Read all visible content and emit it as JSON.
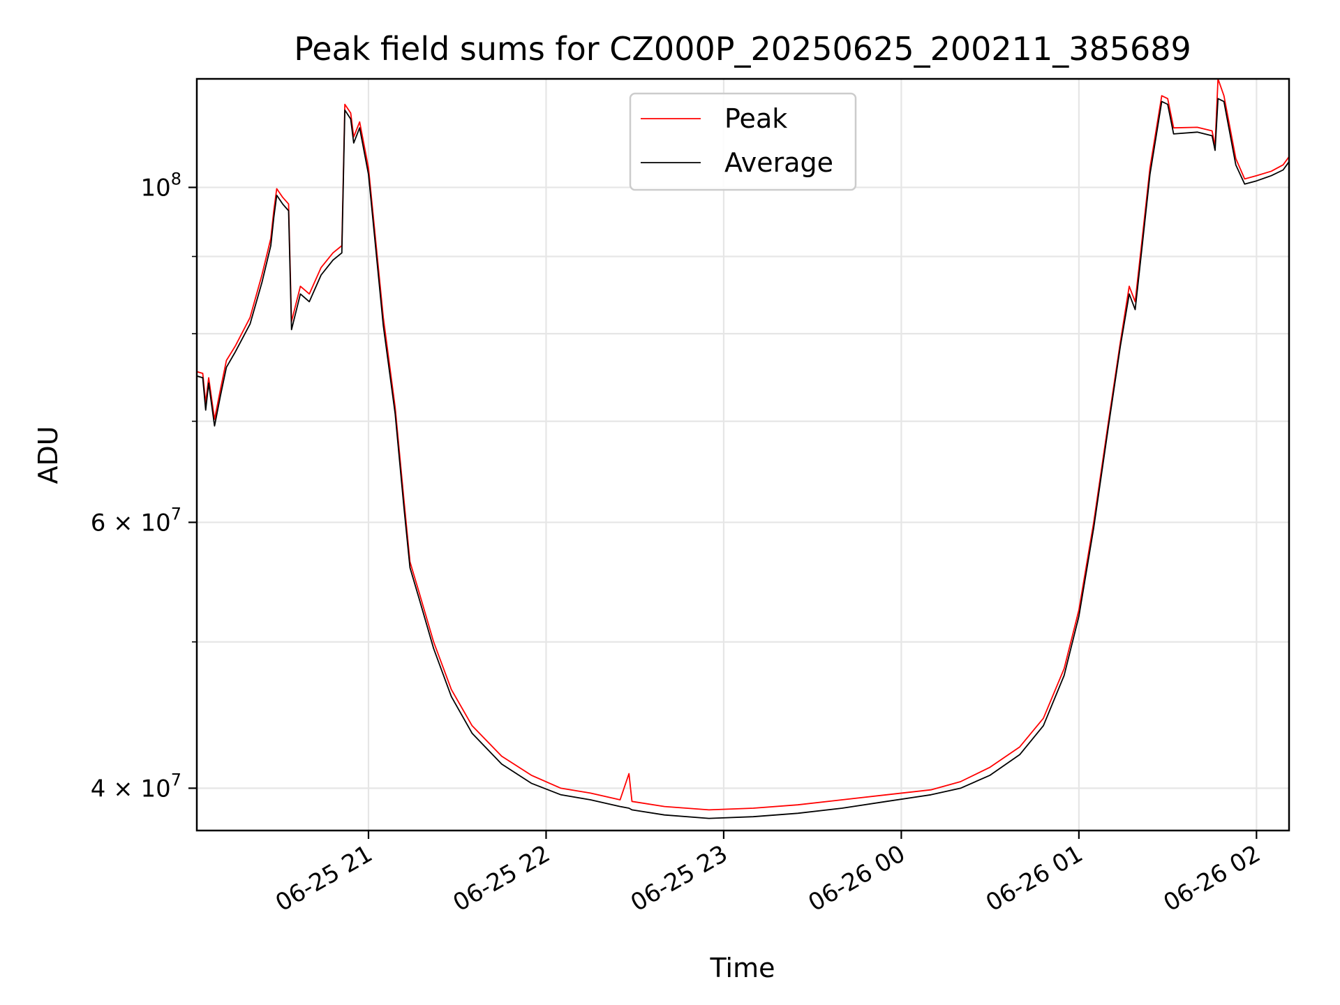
{
  "chart_data": {
    "type": "line",
    "title": "Peak field sums for CZ000P_20250625_200211_385689",
    "xlabel": "Time",
    "ylabel": "ADU",
    "y_scale": "log",
    "grid": true,
    "legend_position": "upper center",
    "xlim": [
      "2025-06-25 20:02",
      "2025-06-26 02:11"
    ],
    "ylim": [
      37500000,
      118000000
    ],
    "x_ticks": [
      {
        "t": "2025-06-25 21:00",
        "label": "06-25 21"
      },
      {
        "t": "2025-06-25 22:00",
        "label": "06-25 22"
      },
      {
        "t": "2025-06-25 23:00",
        "label": "06-25 23"
      },
      {
        "t": "2025-06-26 00:00",
        "label": "06-26 00"
      },
      {
        "t": "2025-06-26 01:00",
        "label": "06-26 01"
      },
      {
        "t": "2025-06-26 02:00",
        "label": "06-26 02"
      }
    ],
    "y_major_ticks": [
      {
        "value": 40000000,
        "mantissa": "4",
        "exponent": "7"
      },
      {
        "value": 60000000,
        "mantissa": "6",
        "exponent": "7"
      },
      {
        "value": 100000000,
        "mantissa": "",
        "exponent": "8"
      }
    ],
    "y_minor_ticks": [
      50000000,
      70000000,
      80000000,
      90000000
    ],
    "colors": {
      "peak": "#ff0000",
      "average": "#000000"
    },
    "series": [
      {
        "name": "Peak",
        "color": "#ff0000",
        "points": [
          [
            "2025-06-25 20:02",
            75500000
          ],
          [
            "2025-06-25 20:04",
            75300000
          ],
          [
            "2025-06-25 20:05",
            72000000
          ],
          [
            "2025-06-25 20:06",
            74800000
          ],
          [
            "2025-06-25 20:08",
            70200000
          ],
          [
            "2025-06-25 20:10",
            73500000
          ],
          [
            "2025-06-25 20:12",
            76800000
          ],
          [
            "2025-06-25 20:15",
            78500000
          ],
          [
            "2025-06-25 20:20",
            82000000
          ],
          [
            "2025-06-25 20:24",
            87500000
          ],
          [
            "2025-06-25 20:27",
            92500000
          ],
          [
            "2025-06-25 20:28",
            96500000
          ],
          [
            "2025-06-25 20:29",
            99800000
          ],
          [
            "2025-06-25 20:31",
            98500000
          ],
          [
            "2025-06-25 20:33",
            97500000
          ],
          [
            "2025-06-25 20:34",
            81500000
          ],
          [
            "2025-06-25 20:37",
            86000000
          ],
          [
            "2025-06-25 20:40",
            85000000
          ],
          [
            "2025-06-25 20:44",
            88500000
          ],
          [
            "2025-06-25 20:48",
            90500000
          ],
          [
            "2025-06-25 20:51",
            91500000
          ],
          [
            "2025-06-25 20:52",
            113500000
          ],
          [
            "2025-06-25 20:54",
            112000000
          ],
          [
            "2025-06-25 20:55",
            108000000
          ],
          [
            "2025-06-25 20:57",
            110500000
          ],
          [
            "2025-06-25 21:00",
            103000000
          ],
          [
            "2025-06-25 21:05",
            82000000
          ],
          [
            "2025-06-25 21:09",
            71500000
          ],
          [
            "2025-06-25 21:12",
            62000000
          ],
          [
            "2025-06-25 21:14",
            56500000
          ],
          [
            "2025-06-25 21:17",
            54000000
          ],
          [
            "2025-06-25 21:22",
            50000000
          ],
          [
            "2025-06-25 21:28",
            46500000
          ],
          [
            "2025-06-25 21:35",
            44000000
          ],
          [
            "2025-06-25 21:45",
            42000000
          ],
          [
            "2025-06-25 21:55",
            40800000
          ],
          [
            "2025-06-25 22:05",
            40000000
          ],
          [
            "2025-06-25 22:15",
            39700000
          ],
          [
            "2025-06-25 22:25",
            39300000
          ],
          [
            "2025-06-25 22:28",
            40900000
          ],
          [
            "2025-06-25 22:29",
            39200000
          ],
          [
            "2025-06-25 22:40",
            38900000
          ],
          [
            "2025-06-25 22:55",
            38700000
          ],
          [
            "2025-06-25 23:10",
            38800000
          ],
          [
            "2025-06-25 23:25",
            39000000
          ],
          [
            "2025-06-25 23:40",
            39300000
          ],
          [
            "2025-06-25 23:55",
            39600000
          ],
          [
            "2025-06-26 00:10",
            39900000
          ],
          [
            "2025-06-26 00:20",
            40400000
          ],
          [
            "2025-06-26 00:30",
            41300000
          ],
          [
            "2025-06-26 00:40",
            42600000
          ],
          [
            "2025-06-26 00:48",
            44500000
          ],
          [
            "2025-06-26 00:55",
            48000000
          ],
          [
            "2025-06-26 01:00",
            52500000
          ],
          [
            "2025-06-26 01:05",
            60000000
          ],
          [
            "2025-06-26 01:10",
            70000000
          ],
          [
            "2025-06-26 01:14",
            79000000
          ],
          [
            "2025-06-26 01:17",
            86000000
          ],
          [
            "2025-06-26 01:19",
            84000000
          ],
          [
            "2025-06-26 01:21",
            91000000
          ],
          [
            "2025-06-26 01:24",
            103000000
          ],
          [
            "2025-06-26 01:28",
            115000000
          ],
          [
            "2025-06-26 01:30",
            114500000
          ],
          [
            "2025-06-26 01:32",
            109500000
          ],
          [
            "2025-06-26 01:40",
            109600000
          ],
          [
            "2025-06-26 01:45",
            109000000
          ],
          [
            "2025-06-26 01:46",
            106500000
          ],
          [
            "2025-06-26 01:47",
            118000000
          ],
          [
            "2025-06-26 01:49",
            115000000
          ],
          [
            "2025-06-26 01:53",
            104500000
          ],
          [
            "2025-06-26 01:56",
            101300000
          ],
          [
            "2025-06-26 02:00",
            101800000
          ],
          [
            "2025-06-26 02:05",
            102500000
          ],
          [
            "2025-06-26 02:09",
            103500000
          ],
          [
            "2025-06-26 02:11",
            104800000
          ]
        ]
      },
      {
        "name": "Average",
        "color": "#000000",
        "points": [
          [
            "2025-06-25 20:02",
            75000000
          ],
          [
            "2025-06-25 20:04",
            74800000
          ],
          [
            "2025-06-25 20:05",
            71200000
          ],
          [
            "2025-06-25 20:06",
            74200000
          ],
          [
            "2025-06-25 20:08",
            69500000
          ],
          [
            "2025-06-25 20:10",
            72800000
          ],
          [
            "2025-06-25 20:12",
            76000000
          ],
          [
            "2025-06-25 20:15",
            77800000
          ],
          [
            "2025-06-25 20:20",
            81200000
          ],
          [
            "2025-06-25 20:24",
            86500000
          ],
          [
            "2025-06-25 20:27",
            91500000
          ],
          [
            "2025-06-25 20:28",
            95500000
          ],
          [
            "2025-06-25 20:29",
            98800000
          ],
          [
            "2025-06-25 20:31",
            97500000
          ],
          [
            "2025-06-25 20:33",
            96500000
          ],
          [
            "2025-06-25 20:34",
            80500000
          ],
          [
            "2025-06-25 20:37",
            85000000
          ],
          [
            "2025-06-25 20:40",
            84000000
          ],
          [
            "2025-06-25 20:44",
            87500000
          ],
          [
            "2025-06-25 20:48",
            89500000
          ],
          [
            "2025-06-25 20:51",
            90500000
          ],
          [
            "2025-06-25 20:52",
            112500000
          ],
          [
            "2025-06-25 20:54",
            111000000
          ],
          [
            "2025-06-25 20:55",
            107000000
          ],
          [
            "2025-06-25 20:57",
            109500000
          ],
          [
            "2025-06-25 21:00",
            102000000
          ],
          [
            "2025-06-25 21:05",
            81000000
          ],
          [
            "2025-06-25 21:09",
            70800000
          ],
          [
            "2025-06-25 21:12",
            61300000
          ],
          [
            "2025-06-25 21:14",
            56000000
          ],
          [
            "2025-06-25 21:17",
            53500000
          ],
          [
            "2025-06-25 21:22",
            49500000
          ],
          [
            "2025-06-25 21:28",
            46000000
          ],
          [
            "2025-06-25 21:35",
            43500000
          ],
          [
            "2025-06-25 21:45",
            41500000
          ],
          [
            "2025-06-25 21:55",
            40300000
          ],
          [
            "2025-06-25 22:05",
            39600000
          ],
          [
            "2025-06-25 22:15",
            39300000
          ],
          [
            "2025-06-25 22:25",
            38900000
          ],
          [
            "2025-06-25 22:28",
            38800000
          ],
          [
            "2025-06-25 22:29",
            38700000
          ],
          [
            "2025-06-25 22:40",
            38400000
          ],
          [
            "2025-06-25 22:55",
            38200000
          ],
          [
            "2025-06-25 23:10",
            38300000
          ],
          [
            "2025-06-25 23:25",
            38500000
          ],
          [
            "2025-06-25 23:40",
            38800000
          ],
          [
            "2025-06-25 23:55",
            39200000
          ],
          [
            "2025-06-26 00:10",
            39600000
          ],
          [
            "2025-06-26 00:20",
            40000000
          ],
          [
            "2025-06-26 00:30",
            40800000
          ],
          [
            "2025-06-26 00:40",
            42100000
          ],
          [
            "2025-06-26 00:48",
            44000000
          ],
          [
            "2025-06-26 00:55",
            47500000
          ],
          [
            "2025-06-26 01:00",
            52000000
          ],
          [
            "2025-06-26 01:05",
            59500000
          ],
          [
            "2025-06-26 01:10",
            69500000
          ],
          [
            "2025-06-26 01:14",
            78500000
          ],
          [
            "2025-06-26 01:17",
            85000000
          ],
          [
            "2025-06-26 01:19",
            83000000
          ],
          [
            "2025-06-26 01:21",
            90000000
          ],
          [
            "2025-06-26 01:24",
            102000000
          ],
          [
            "2025-06-26 01:28",
            114000000
          ],
          [
            "2025-06-26 01:30",
            113500000
          ],
          [
            "2025-06-26 01:32",
            108500000
          ],
          [
            "2025-06-26 01:40",
            108800000
          ],
          [
            "2025-06-26 01:45",
            108200000
          ],
          [
            "2025-06-26 01:46",
            105800000
          ],
          [
            "2025-06-26 01:47",
            114500000
          ],
          [
            "2025-06-26 01:49",
            114000000
          ],
          [
            "2025-06-26 01:53",
            103500000
          ],
          [
            "2025-06-26 01:56",
            100500000
          ],
          [
            "2025-06-26 02:00",
            101000000
          ],
          [
            "2025-06-26 02:05",
            101800000
          ],
          [
            "2025-06-26 02:09",
            102700000
          ],
          [
            "2025-06-26 02:11",
            104000000
          ]
        ]
      }
    ]
  }
}
